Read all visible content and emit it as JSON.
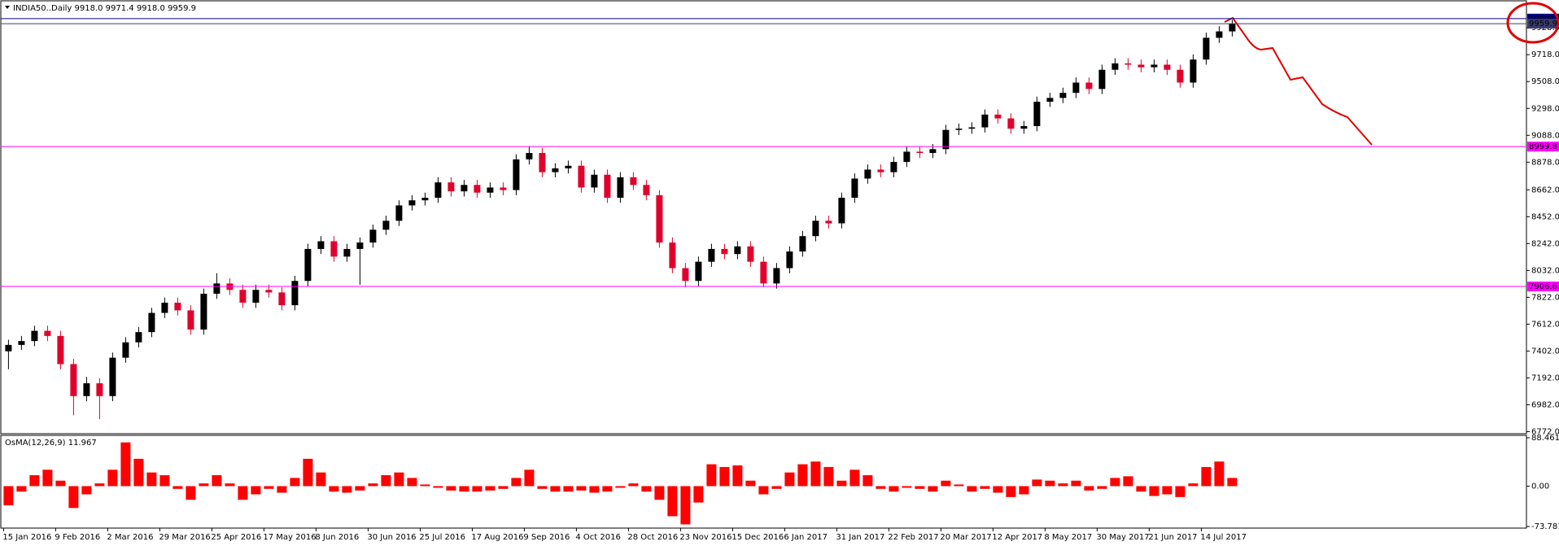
{
  "chart_data": [
    {
      "type": "candlestick",
      "title": "INDIA50..Daily  9918.0 9971.4 9918.0 9959.9",
      "categories": [
        "15 Jan 2016",
        null,
        null,
        null,
        "9 Feb 2016",
        null,
        null,
        null,
        "2 Mar 2016",
        null,
        null,
        null,
        "29 Mar 2016",
        null,
        null,
        null,
        "25 Apr 2016",
        null,
        null,
        null,
        "17 May 2016",
        null,
        null,
        null,
        "8 Jun 2016",
        null,
        null,
        null,
        "30 Jun 2016",
        null,
        null,
        null,
        "25 Jul 2016",
        null,
        null,
        null,
        "17 Aug 2016",
        null,
        null,
        null,
        "9 Sep 2016",
        null,
        null,
        null,
        "4 Oct 2016",
        null,
        null,
        null,
        "28 Oct 2016",
        null,
        null,
        null,
        "23 Nov 2016",
        null,
        null,
        null,
        "15 Dec 2016",
        null,
        null,
        null,
        "6 Jan 2017",
        null,
        null,
        null,
        "31 Jan 2017",
        null,
        null,
        null,
        "22 Feb 2017",
        null,
        null,
        null,
        "20 Mar 2017",
        null,
        null,
        null,
        "12 Apr 2017",
        null,
        null,
        null,
        "8 May 2017",
        null,
        null,
        null,
        "30 May 2017",
        null,
        null,
        null,
        "21 Jun 2017",
        null,
        null,
        null,
        "14 Jul 2017",
        null,
        null
      ],
      "open": [
        7400,
        7450,
        7480,
        7560,
        7520,
        7300,
        7050,
        7150,
        7050,
        7350,
        7470,
        7550,
        7700,
        7780,
        7720,
        7570,
        7850,
        7930,
        7880,
        7780,
        7880,
        7860,
        7760,
        7950,
        8200,
        8260,
        8140,
        8200,
        8250,
        8350,
        8420,
        8540,
        8580,
        8600,
        8720,
        8650,
        8700,
        8640,
        8680,
        8660,
        8900,
        8950,
        8800,
        8830,
        8850,
        8680,
        8780,
        8600,
        8760,
        8700,
        8620,
        8250,
        8050,
        7950,
        8100,
        8200,
        8160,
        8220,
        8100,
        7930,
        8050,
        8180,
        8300,
        8420,
        8400,
        8600,
        8750,
        8820,
        8800,
        8880,
        8960,
        8950,
        8980,
        9130,
        9140,
        9150,
        9250,
        9220,
        9140,
        9160,
        9350,
        9380,
        9420,
        9500,
        9450,
        9600,
        9650,
        9640,
        9620,
        9640,
        9600,
        9500,
        9680,
        9850,
        9900
      ],
      "high": [
        7490,
        7520,
        7600,
        7600,
        7560,
        7340,
        7200,
        7190,
        7390,
        7510,
        7590,
        7740,
        7820,
        7820,
        7760,
        7890,
        8010,
        7970,
        7920,
        7920,
        7920,
        7900,
        7990,
        8240,
        8300,
        8300,
        8240,
        8290,
        8390,
        8460,
        8580,
        8620,
        8640,
        8760,
        8760,
        8740,
        8740,
        8720,
        8720,
        8940,
        9000,
        8990,
        8870,
        8890,
        8890,
        8820,
        8820,
        8800,
        8800,
        8740,
        8660,
        8290,
        8090,
        8140,
        8240,
        8240,
        8260,
        8260,
        8140,
        8090,
        8220,
        8340,
        8460,
        8460,
        8640,
        8790,
        8860,
        8860,
        8920,
        9000,
        9000,
        9020,
        9170,
        9180,
        9190,
        9290,
        9290,
        9260,
        9200,
        9390,
        9420,
        9460,
        9540,
        9540,
        9640,
        9690,
        9690,
        9680,
        9680,
        9680,
        9640,
        9720,
        9890,
        9940,
        9990
      ],
      "low": [
        7260,
        7410,
        7440,
        7480,
        7260,
        6900,
        7010,
        6870,
        7010,
        7310,
        7430,
        7510,
        7660,
        7680,
        7530,
        7530,
        7810,
        7840,
        7740,
        7740,
        7820,
        7720,
        7720,
        7910,
        8160,
        8100,
        8100,
        7920,
        8210,
        8310,
        8380,
        8500,
        8540,
        8560,
        8610,
        8610,
        8600,
        8600,
        8620,
        8620,
        8860,
        8760,
        8760,
        8790,
        8640,
        8640,
        8560,
        8560,
        8660,
        8580,
        8210,
        8010,
        7900,
        7910,
        8060,
        8120,
        8120,
        8060,
        7900,
        7890,
        8010,
        8140,
        8260,
        8360,
        8360,
        8560,
        8710,
        8760,
        8760,
        8840,
        8910,
        8910,
        8940,
        9090,
        9100,
        9110,
        9180,
        9100,
        9100,
        9120,
        9310,
        9340,
        9380,
        9410,
        9410,
        9560,
        9600,
        9580,
        9580,
        9560,
        9460,
        9460,
        9640,
        9810,
        9860
      ],
      "close": [
        7450,
        7480,
        7560,
        7520,
        7300,
        7050,
        7150,
        7050,
        7350,
        7470,
        7550,
        7700,
        7780,
        7720,
        7570,
        7850,
        7930,
        7880,
        7780,
        7880,
        7860,
        7760,
        7950,
        8200,
        8260,
        8140,
        8200,
        8250,
        8350,
        8420,
        8540,
        8580,
        8600,
        8720,
        8650,
        8700,
        8640,
        8680,
        8660,
        8900,
        8950,
        8800,
        8830,
        8850,
        8680,
        8780,
        8600,
        8760,
        8700,
        8620,
        8250,
        8050,
        7950,
        8100,
        8200,
        8160,
        8220,
        8100,
        7930,
        8050,
        8180,
        8300,
        8420,
        8400,
        8600,
        8750,
        8820,
        8800,
        8880,
        8960,
        8950,
        8980,
        9130,
        9140,
        9150,
        9250,
        9220,
        9140,
        9160,
        9350,
        9380,
        9420,
        9500,
        9450,
        9600,
        9650,
        9640,
        9620,
        9640,
        9600,
        9500,
        9680,
        9850,
        9900,
        9960
      ],
      "up_color": "#000000",
      "down_color": "#e0002b",
      "ylim": [
        6756,
        10139
      ],
      "yticks": [
        {
          "value": 6772,
          "label": "6772.0"
        },
        {
          "value": 6982,
          "label": "6982.0"
        },
        {
          "value": 7192,
          "label": "7192.0"
        },
        {
          "value": 7402,
          "label": "7402.0"
        },
        {
          "value": 7612,
          "label": "7612.0"
        },
        {
          "value": 7822,
          "label": "7822.0"
        },
        {
          "value": 8032,
          "label": "8032.0"
        },
        {
          "value": 8242,
          "label": "8242.0"
        },
        {
          "value": 8452,
          "label": "8452.0"
        },
        {
          "value": 8662,
          "label": "8662.0"
        },
        {
          "value": 8878,
          "label": "8878.0"
        },
        {
          "value": 9088,
          "label": "9088.0"
        },
        {
          "value": 9298,
          "label": "9298.0"
        },
        {
          "value": 9508,
          "label": "9508.0"
        },
        {
          "value": 9718,
          "label": "9718.0"
        },
        {
          "value": 9928,
          "label": "9928.0"
        }
      ],
      "levels": [
        {
          "value": 10000,
          "label": "10000.0",
          "color": "#000080"
        },
        {
          "value": 9959.9,
          "label": "9959.9",
          "color": "#3c3c6e"
        },
        {
          "value": 8999.8,
          "label": "8999.8",
          "color": "#ff00ff"
        },
        {
          "value": 7906.6,
          "label": "7906.6",
          "color": "#ff00ff"
        }
      ]
    },
    {
      "type": "bar",
      "title": "OsMA(12,26,9) 11.967",
      "values": [
        -35,
        -10,
        20,
        30,
        10,
        -40,
        -15,
        5,
        30,
        80,
        50,
        25,
        20,
        -5,
        -25,
        5,
        20,
        5,
        -25,
        -15,
        -5,
        -12,
        15,
        50,
        25,
        -10,
        -12,
        -8,
        5,
        20,
        25,
        15,
        3,
        -3,
        -8,
        -10,
        -10,
        -8,
        -5,
        15,
        30,
        -5,
        -10,
        -10,
        -8,
        -12,
        -10,
        -3,
        5,
        -10,
        -25,
        -55,
        -70,
        -30,
        40,
        35,
        38,
        10,
        -15,
        -5,
        25,
        40,
        45,
        35,
        10,
        30,
        20,
        -5,
        -10,
        -3,
        -5,
        -10,
        10,
        3,
        -10,
        -5,
        -12,
        -20,
        -15,
        12,
        10,
        5,
        10,
        -8,
        -5,
        15,
        18,
        -10,
        -18,
        -15,
        -20,
        5,
        35,
        45,
        15
      ],
      "color": "#ff0000",
      "ylim": [
        -73.781,
        88.461
      ],
      "yticks": [
        88.461,
        {
          "value": 0,
          "label": "0.00"
        },
        -73.781
      ]
    }
  ]
}
